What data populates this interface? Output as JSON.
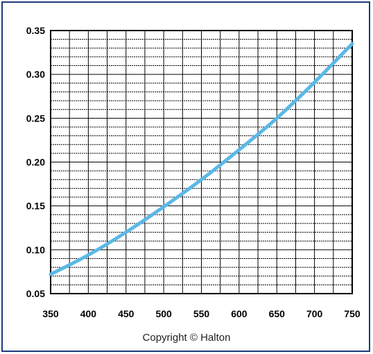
{
  "copyright": "Copyright © Halton",
  "colors": {
    "line": "#5bb8e6",
    "grid": "#000000",
    "frame": "#1f3a7a"
  },
  "chart_data": {
    "type": "line",
    "title": "",
    "xlabel": "",
    "ylabel": "",
    "xlim": [
      350,
      750
    ],
    "ylim": [
      0.05,
      0.35
    ],
    "xticks": [
      "350",
      "400",
      "450",
      "500",
      "550",
      "600",
      "650",
      "700",
      "750"
    ],
    "yticks": [
      "0.05",
      "0.10",
      "0.15",
      "0.20",
      "0.25",
      "0.30",
      "0.35"
    ],
    "grid": true,
    "series": [
      {
        "x": [
          350,
          400,
          450,
          500,
          550,
          600,
          650,
          700,
          750
        ],
        "y": [
          0.072,
          0.094,
          0.12,
          0.149,
          0.18,
          0.214,
          0.25,
          0.291,
          0.335
        ]
      }
    ]
  }
}
